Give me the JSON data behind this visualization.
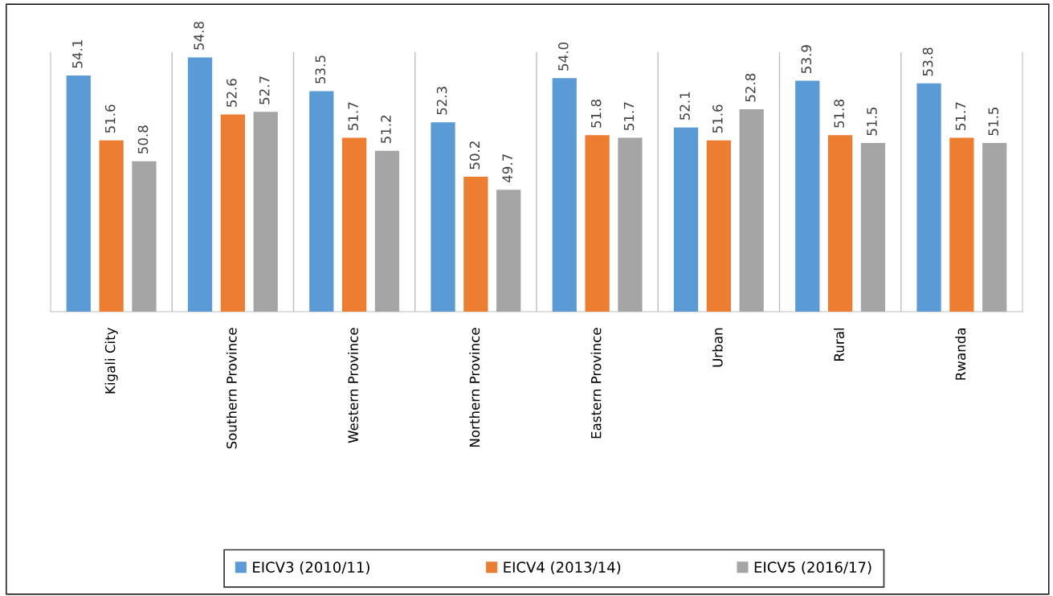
{
  "chart_data": {
    "type": "bar",
    "categories": [
      "Kigali City",
      "Southern Province",
      "Western Province",
      "Northern Province",
      "Eastern Province",
      "Urban",
      "Rural",
      "Rwanda"
    ],
    "series": [
      {
        "name": "EICV3 (2010/11)",
        "color": "#5b9bd5",
        "values": [
          54.1,
          54.8,
          53.5,
          52.3,
          54.0,
          52.1,
          53.9,
          53.8
        ],
        "value_labels": [
          "54.1",
          "54.8",
          "53.5",
          "52.3",
          "54.0",
          "52.1",
          "53.9",
          "53.8"
        ]
      },
      {
        "name": "EICV4 (2013/14)",
        "color": "#ed7d31",
        "values": [
          51.6,
          52.6,
          51.7,
          50.2,
          51.8,
          51.6,
          51.8,
          51.7
        ],
        "value_labels": [
          "51.6",
          "52.6",
          "51.7",
          "50.2",
          "51.8",
          "51.6",
          "51.8",
          "51.7"
        ]
      },
      {
        "name": "EICV5 (2016/17)",
        "color": "#a5a5a5",
        "values": [
          50.8,
          52.7,
          51.2,
          49.7,
          51.7,
          52.8,
          51.5,
          51.5
        ],
        "value_labels": [
          "50.8",
          "52.7",
          "51.2",
          "49.7",
          "51.7",
          "52.8",
          "51.5",
          "51.5"
        ]
      }
    ],
    "ylim": [
      45,
      55
    ],
    "tick_labels": "x",
    "grid": "x",
    "legend": "bottom"
  }
}
